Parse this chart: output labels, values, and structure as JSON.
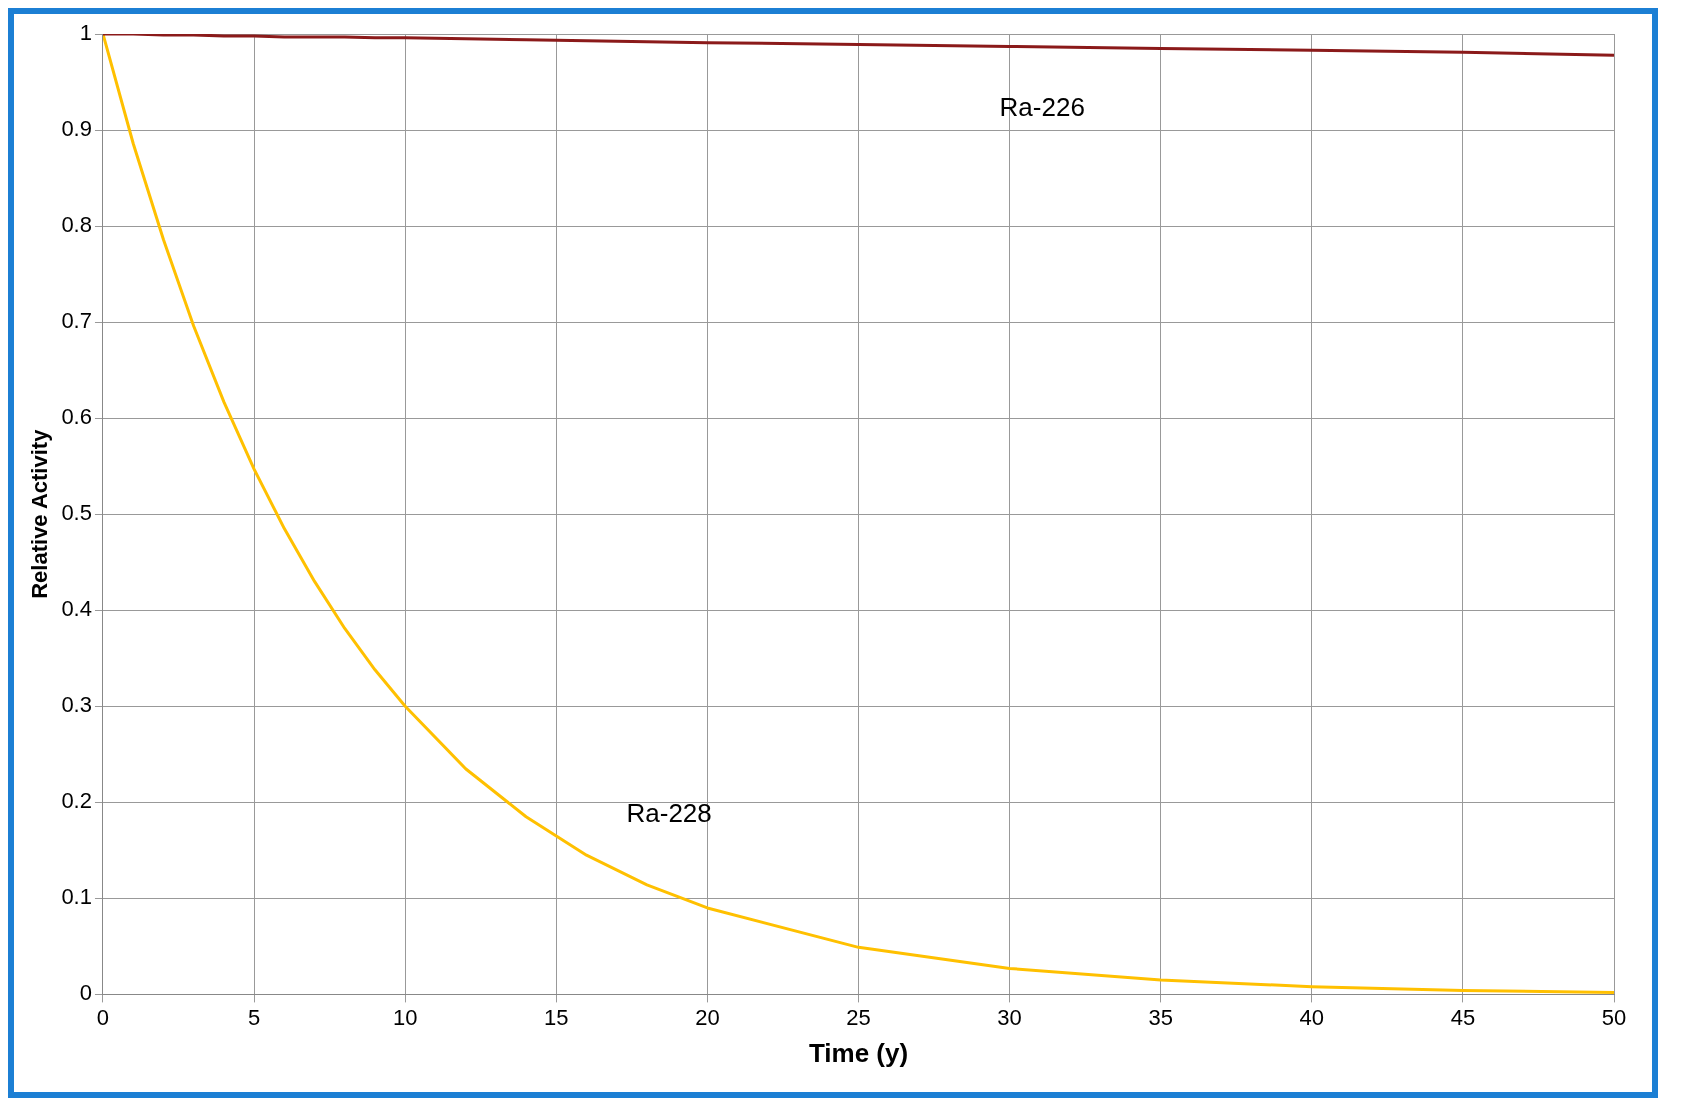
{
  "chart_data": {
    "type": "line",
    "xlabel": "Time (y)",
    "ylabel": "Relative Activity",
    "x": [
      0,
      1,
      2,
      3,
      4,
      5,
      6,
      7,
      8,
      9,
      10,
      12,
      14,
      16,
      18,
      20,
      25,
      30,
      35,
      40,
      45,
      50
    ],
    "series": [
      {
        "name": "Ra-226",
        "color": "#8b1a1a",
        "values": [
          1,
          1,
          0.999,
          0.999,
          0.998,
          0.998,
          0.997,
          0.997,
          0.997,
          0.996,
          0.996,
          0.995,
          0.994,
          0.993,
          0.992,
          0.991,
          0.989,
          0.987,
          0.985,
          0.983,
          0.981,
          0.978
        ]
      },
      {
        "name": "Ra-228",
        "color": "#ffc000",
        "values": [
          1,
          0.886,
          0.786,
          0.696,
          0.617,
          0.547,
          0.485,
          0.43,
          0.381,
          0.338,
          0.3,
          0.235,
          0.185,
          0.145,
          0.114,
          0.09,
          0.049,
          0.027,
          0.015,
          0.008,
          0.004,
          0.002
        ]
      }
    ],
    "xlim": [
      0,
      50
    ],
    "xticks": [
      0,
      5,
      10,
      15,
      20,
      25,
      30,
      35,
      40,
      45,
      50
    ],
    "ylim": [
      0,
      1
    ],
    "yticks": [
      0,
      0.1,
      0.2,
      0.3,
      0.4,
      0.5,
      0.6,
      0.7,
      0.8,
      0.9,
      1
    ],
    "grid": true,
    "legend": false,
    "marker": "none",
    "line_style": "solid"
  }
}
